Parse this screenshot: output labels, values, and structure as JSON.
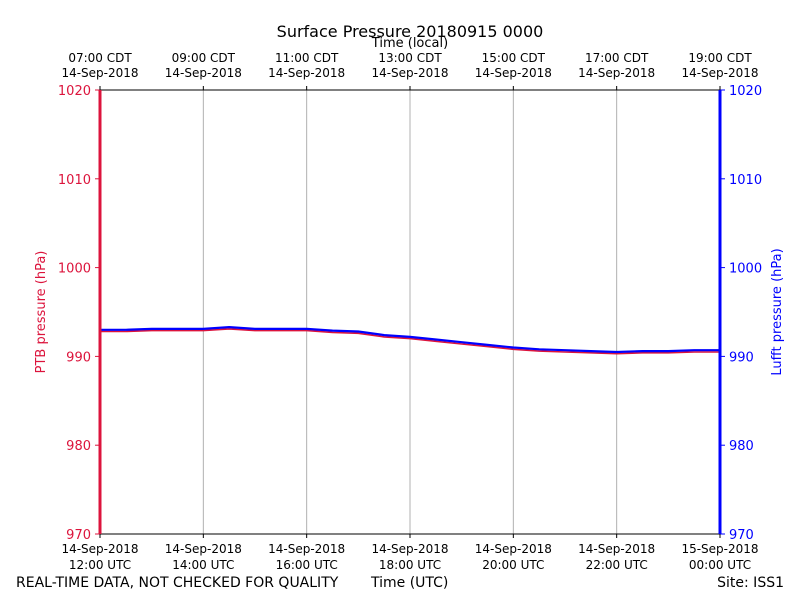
{
  "chart_data": {
    "type": "line",
    "title": "Surface Pressure 20180915 0000",
    "top_axis_label": "Time (local)",
    "xlabel": "Time (UTC)",
    "ylabel_left": "PTB pressure (hPa)",
    "ylabel_right": "Lufft pressure (hPa)",
    "ylim": [
      970,
      1020
    ],
    "yticks": [
      970,
      980,
      990,
      1000,
      1010,
      1020
    ],
    "xlim_hours_utc": [
      12,
      24
    ],
    "x_ticks": [
      {
        "hour": 12,
        "date": "14-Sep-2018",
        "utc": "12:00 UTC",
        "local_time": "07:00 CDT",
        "local_date": "14-Sep-2018"
      },
      {
        "hour": 14,
        "date": "14-Sep-2018",
        "utc": "14:00 UTC",
        "local_time": "09:00 CDT",
        "local_date": "14-Sep-2018"
      },
      {
        "hour": 16,
        "date": "14-Sep-2018",
        "utc": "16:00 UTC",
        "local_time": "11:00 CDT",
        "local_date": "14-Sep-2018"
      },
      {
        "hour": 18,
        "date": "14-Sep-2018",
        "utc": "18:00 UTC",
        "local_time": "13:00 CDT",
        "local_date": "14-Sep-2018"
      },
      {
        "hour": 20,
        "date": "14-Sep-2018",
        "utc": "20:00 UTC",
        "local_time": "15:00 CDT",
        "local_date": "14-Sep-2018"
      },
      {
        "hour": 22,
        "date": "14-Sep-2018",
        "utc": "22:00 UTC",
        "local_time": "17:00 CDT",
        "local_date": "14-Sep-2018"
      },
      {
        "hour": 24,
        "date": "15-Sep-2018",
        "utc": "00:00 UTC",
        "local_time": "19:00 CDT",
        "local_date": "14-Sep-2018"
      }
    ],
    "grid": "vertical",
    "series": [
      {
        "name": "PTB",
        "color": "#dc143c",
        "x": [
          12,
          12.5,
          13,
          13.5,
          14,
          14.5,
          15,
          15.5,
          16,
          16.5,
          17,
          17.5,
          18,
          18.5,
          19,
          19.5,
          20,
          20.5,
          21,
          21.5,
          22,
          22.5,
          23,
          23.5,
          24
        ],
        "values": [
          992.8,
          992.8,
          992.9,
          992.9,
          992.9,
          993.1,
          992.9,
          992.9,
          992.9,
          992.7,
          992.6,
          992.2,
          992.0,
          991.7,
          991.4,
          991.1,
          990.8,
          990.6,
          990.5,
          990.4,
          990.3,
          990.4,
          990.4,
          990.5,
          990.5
        ]
      },
      {
        "name": "Lufft",
        "color": "#0000ff",
        "x": [
          12,
          12.5,
          13,
          13.5,
          14,
          14.5,
          15,
          15.5,
          16,
          16.5,
          17,
          17.5,
          18,
          18.5,
          19,
          19.5,
          20,
          20.5,
          21,
          21.5,
          22,
          22.5,
          23,
          23.5,
          24
        ],
        "values": [
          993.0,
          993.0,
          993.1,
          993.1,
          993.1,
          993.3,
          993.1,
          993.1,
          993.1,
          992.9,
          992.8,
          992.4,
          992.2,
          991.9,
          991.6,
          991.3,
          991.0,
          990.8,
          990.7,
          990.6,
          990.5,
          990.6,
          990.6,
          990.7,
          990.7
        ]
      }
    ],
    "left_axis_color": "#dc143c",
    "right_axis_color": "#0000ff"
  },
  "footer": {
    "left": "REAL-TIME DATA, NOT CHECKED FOR QUALITY",
    "center": "Time (UTC)",
    "right": "Site: ISS1"
  }
}
